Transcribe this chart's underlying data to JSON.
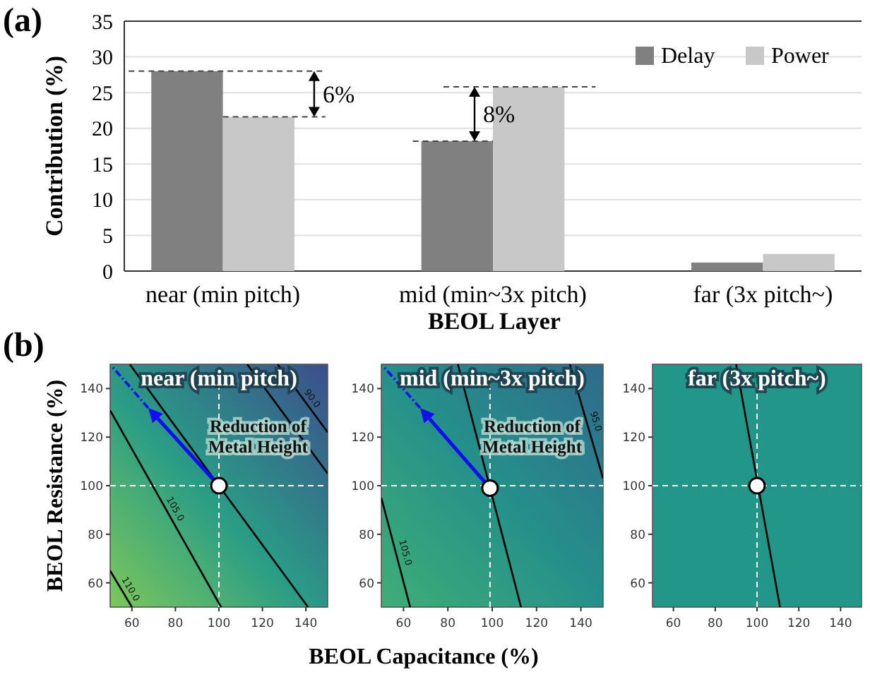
{
  "chart_data": [
    {
      "type": "bar",
      "xlabel": "BEOL Layer",
      "ylabel": "Contribution (%)",
      "categories": [
        "near (min pitch)",
        "mid (min~3x pitch)",
        "far (3x pitch~)"
      ],
      "series": [
        {
          "name": "Delay",
          "color": "#808080",
          "values": [
            28,
            18.2,
            1.2
          ]
        },
        {
          "name": "Power",
          "color": "#c8c8c8",
          "values": [
            21.6,
            25.8,
            2.4
          ]
        }
      ],
      "ylim": [
        0,
        35
      ],
      "yticks": [
        0,
        5,
        10,
        15,
        20,
        25,
        30,
        35
      ],
      "grid": "y",
      "legend": "top right",
      "annotations": [
        "(a)",
        {
          "text": "6%",
          "x": "near (min pitch)",
          "y": 21.6
        },
        {
          "text": "8%",
          "x": "mid (min~3x pitch)",
          "y": 18.2
        }
      ]
    },
    {
      "type": "line",
      "title": "near (min pitch)",
      "ylabel": "BEOL Resistance (%)",
      "xlim": [
        50,
        150
      ],
      "ylim": [
        50,
        150
      ],
      "xticks": [
        60,
        80,
        100,
        120,
        140
      ],
      "yticks": [
        60,
        80,
        100,
        120,
        140
      ],
      "series": [
        {
          "name": "90.0",
          "color": "#000000",
          "x": [
            127,
            150
          ],
          "values": [
            150,
            122
          ]
        },
        {
          "color": "#000000",
          "x": [
            113,
            150
          ],
          "values": [
            150,
            105
          ]
        },
        {
          "color": "#000000",
          "x": [
            59,
            100,
            141
          ],
          "values": [
            150,
            100,
            50
          ]
        },
        {
          "name": "105.0",
          "color": "#000000",
          "x": [
            50,
            101
          ],
          "values": [
            131,
            50
          ]
        },
        {
          "name": "110.0",
          "color": "#000000",
          "x": [
            50,
            60
          ],
          "values": [
            65,
            50
          ]
        },
        {
          "type": "scatter",
          "color": "#ffffff",
          "marker": "circle",
          "x": [
            100
          ],
          "values": [
            100
          ]
        }
      ],
      "ref_lines": [
        {
          "axis": "x",
          "value": 100,
          "color": "#ffffff",
          "line_style": "dashed"
        },
        {
          "axis": "y",
          "value": 100,
          "color": "#ffffff",
          "line_style": "dashed"
        }
      ],
      "annotations": [
        "(b)",
        "Reduction of Metal Height"
      ]
    },
    {
      "type": "line",
      "title": "mid (min~3x pitch)",
      "xlabel": "BEOL Capacitance (%)",
      "xlim": [
        50,
        150
      ],
      "ylim": [
        50,
        150
      ],
      "xticks": [
        60,
        80,
        100,
        120,
        140
      ],
      "yticks": [
        60,
        80,
        100,
        120,
        140
      ],
      "series": [
        {
          "color": "#000000",
          "x": [
            84.5,
            113
          ],
          "values": [
            150,
            50
          ]
        },
        {
          "name": "105.0",
          "color": "#000000",
          "x": [
            50,
            63
          ],
          "values": [
            95,
            50
          ]
        },
        {
          "name": "95.0",
          "color": "#000000",
          "x": [
            135,
            150
          ],
          "values": [
            150,
            103
          ]
        },
        {
          "type": "scatter",
          "color": "#ffffff",
          "marker": "circle",
          "x": [
            99
          ],
          "values": [
            99
          ]
        }
      ],
      "ref_lines": [
        {
          "axis": "x",
          "value": 99,
          "color": "#ffffff",
          "line_style": "dashed"
        },
        {
          "axis": "y",
          "value": 100,
          "color": "#ffffff",
          "line_style": "dashed"
        }
      ],
      "annotations": [
        "Reduction of Metal Height"
      ]
    },
    {
      "type": "line",
      "title": "far (3x pitch~)",
      "xlim": [
        50,
        150
      ],
      "ylim": [
        50,
        150
      ],
      "xticks": [
        60,
        80,
        100,
        120,
        140
      ],
      "yticks": [
        60,
        80,
        100,
        120,
        140
      ],
      "series": [
        {
          "color": "#000000",
          "x": [
            90,
            111
          ],
          "values": [
            150,
            50
          ]
        },
        {
          "type": "scatter",
          "color": "#ffffff",
          "marker": "circle",
          "x": [
            100
          ],
          "values": [
            100
          ]
        }
      ],
      "ref_lines": [
        {
          "axis": "x",
          "value": 100,
          "color": "#ffffff",
          "line_style": "dashed"
        },
        {
          "axis": "y",
          "value": 100,
          "color": "#ffffff",
          "line_style": "dashed"
        }
      ]
    }
  ]
}
